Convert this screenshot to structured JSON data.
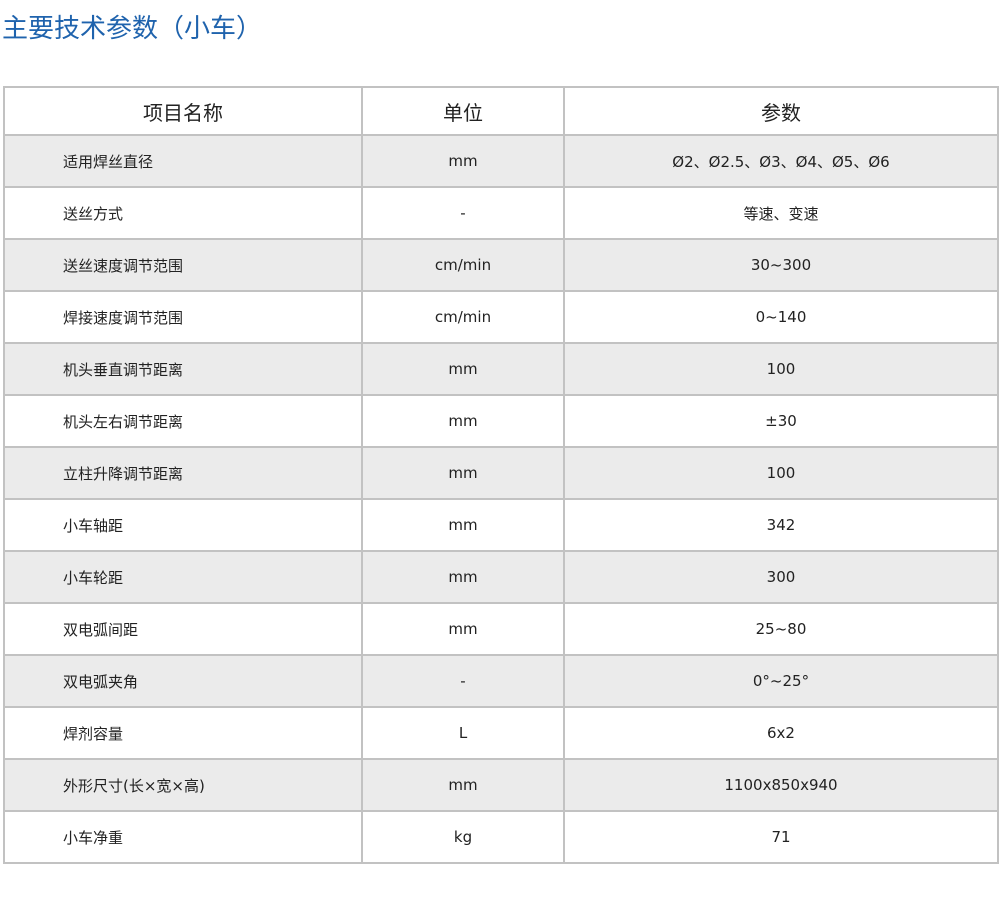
{
  "title": "主要技术参数（小车）",
  "table": {
    "headers": [
      "项目名称",
      "单位",
      "参数"
    ],
    "rows": [
      {
        "name": "适用焊丝直径",
        "unit": "mm",
        "value": "Ø2、Ø2.5、Ø3、Ø4、Ø5、Ø6"
      },
      {
        "name": "送丝方式",
        "unit": "-",
        "value": "等速、变速"
      },
      {
        "name": "送丝速度调节范围",
        "unit": "cm/min",
        "value": "30~300"
      },
      {
        "name": "焊接速度调节范围",
        "unit": "cm/min",
        "value": "0~140"
      },
      {
        "name": "机头垂直调节距离",
        "unit": "mm",
        "value": "100"
      },
      {
        "name": "机头左右调节距离",
        "unit": "mm",
        "value": "±30"
      },
      {
        "name": "立柱升降调节距离",
        "unit": "mm",
        "value": "100"
      },
      {
        "name": "小车轴距",
        "unit": "mm",
        "value": "342"
      },
      {
        "name": "小车轮距",
        "unit": "mm",
        "value": "300"
      },
      {
        "name": "双电弧间距",
        "unit": "mm",
        "value": "25~80"
      },
      {
        "name": "双电弧夹角",
        "unit": "-",
        "value": "0°~25°"
      },
      {
        "name": "焊剂容量",
        "unit": "L",
        "value": "6x2"
      },
      {
        "name": "外形尺寸(长×宽×高)",
        "unit": "mm",
        "value": "1100x850x940"
      },
      {
        "name": "小车净重",
        "unit": "kg",
        "value": "71"
      }
    ]
  }
}
